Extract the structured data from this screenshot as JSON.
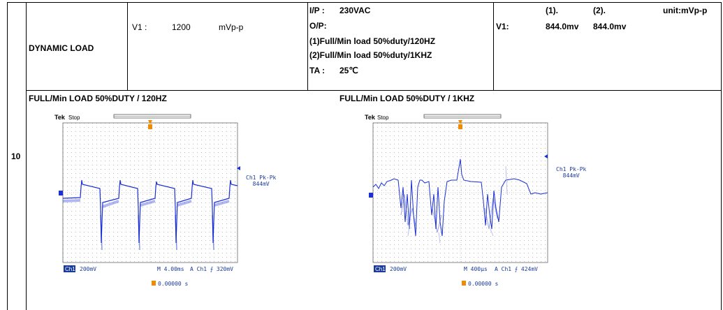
{
  "row_number": "10",
  "test_name": "DYNAMIC LOAD",
  "v1_cell": {
    "label": "V1 :",
    "value": "1200",
    "unit": "mVp-p"
  },
  "conditions": {
    "ip_label": "I/P :",
    "ip_value": "230VAC",
    "op_label": "O/P:",
    "line1": "(1)Full/Min load 50%duty/120HZ",
    "line2": "(2)Full/Min load 50%duty/1KHZ",
    "ta_label": "TA :",
    "ta_value": "25℃"
  },
  "results": {
    "col1_header": "(1).",
    "col2_header": "(2).",
    "unit": "unit:mVp-p",
    "row_label": "V1:",
    "val1": "844.0mv",
    "val2": "844.0mv"
  },
  "scopes": [
    {
      "caption": "FULL/Min LOAD 50%DUTY / 120HZ",
      "brand": "Tek",
      "state": "Stop",
      "ch_label": "Ch1",
      "ch_scale": "200mV",
      "timebase": "M 4.00ms",
      "trigger": "A  Ch1  ⨍   320mV",
      "pk_label": "Ch1 Pk-Pk",
      "pk_value": "844mV",
      "offset": "0.00000 s"
    },
    {
      "caption": "FULL/Min LOAD 50%DUTY / 1KHZ",
      "brand": "Tek",
      "state": "Stop",
      "ch_label": "Ch1",
      "ch_scale": "200mV",
      "timebase": "M 400µs",
      "trigger": "A  Ch1  ⨍   424mV",
      "pk_label": "Ch1 Pk-Pk",
      "pk_value": "844mV",
      "offset": "0.00000 s"
    }
  ],
  "colors": {
    "trace": "#1a2fd6",
    "trigger_marker": "#f08a00",
    "label_blue": "#1a3a9a"
  }
}
